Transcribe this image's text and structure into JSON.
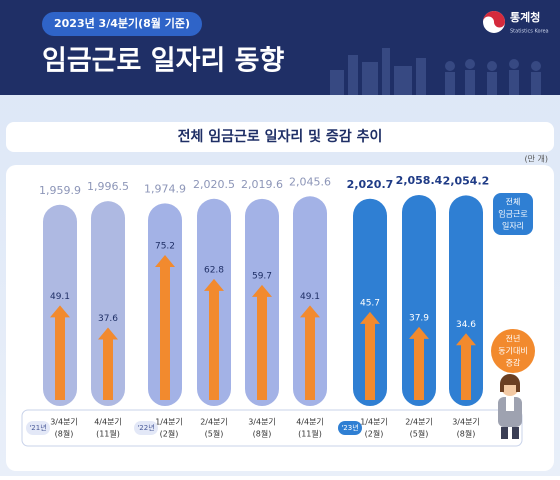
{
  "header": {
    "badge": "2023년 3/4분기(8월 기준)",
    "title": "임금근로 일자리 동향",
    "logo_name": "통계청",
    "logo_sub": "Statistics Korea"
  },
  "chart_data": {
    "type": "bar",
    "title": "전체 임금근로 일자리 및 증감 추이",
    "unit": "(만 개)",
    "legend": {
      "total": [
        "전체",
        "임금근로",
        "일자리"
      ],
      "change": [
        "전년",
        "동기대비",
        "증감"
      ]
    },
    "change_color": "#f28a2e",
    "groups": [
      {
        "year": "'21년",
        "color": "#aeb9e2",
        "items": [
          {
            "period": "3/4분기",
            "month": "(8월)",
            "total": 1959.9,
            "total_label": "1,959.9",
            "change": 49.1
          },
          {
            "period": "4/4분기",
            "month": "(11월)",
            "total": 1996.5,
            "total_label": "1,996.5",
            "change": 37.6
          }
        ]
      },
      {
        "year": "'22년",
        "color": "#a3b2e6",
        "items": [
          {
            "period": "1/4분기",
            "month": "(2월)",
            "total": 1974.9,
            "total_label": "1,974.9",
            "change": 75.2
          },
          {
            "period": "2/4분기",
            "month": "(5월)",
            "total": 2020.5,
            "total_label": "2,020.5",
            "change": 62.8
          },
          {
            "period": "3/4분기",
            "month": "(8월)",
            "total": 2019.6,
            "total_label": "2,019.6",
            "change": 59.7
          },
          {
            "period": "4/4분기",
            "month": "(11월)",
            "total": 2045.6,
            "total_label": "2,045.6",
            "change": 49.1
          }
        ]
      },
      {
        "year": "'23년",
        "color": "#2f7fd3",
        "items": [
          {
            "period": "1/4분기",
            "month": "(2월)",
            "total": 2020.7,
            "total_label": "2,020.7",
            "change": 45.7
          },
          {
            "period": "2/4분기",
            "month": "(5월)",
            "total": 2058.4,
            "total_label": "2,058.4",
            "change": 37.9
          },
          {
            "period": "3/4분기",
            "month": "(8월)",
            "total": 2054.2,
            "total_label": "2,054.2",
            "change": 34.6
          }
        ]
      }
    ]
  }
}
